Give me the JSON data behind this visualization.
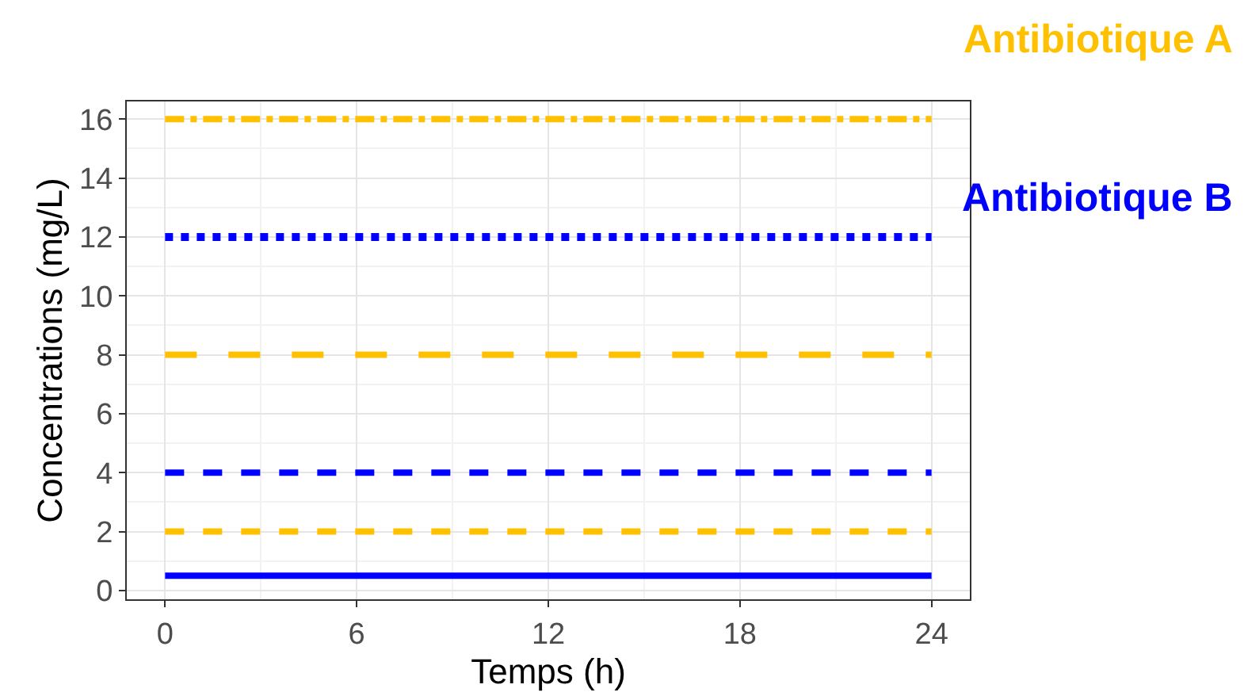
{
  "chart_data": {
    "type": "line",
    "xlabel": "Temps (h)",
    "ylabel": "Concentrations (mg/L)",
    "x": [
      0,
      24
    ],
    "series": [
      {
        "name": "Antibiotique A",
        "color": "#ffc000",
        "values": [
          16,
          16
        ],
        "line_style": "dashdot"
      },
      {
        "color": "#0000ff",
        "values": [
          12,
          12
        ],
        "line_style": "dotted"
      },
      {
        "color": "#ffc000",
        "values": [
          8,
          8
        ],
        "line_style": "longdashed"
      },
      {
        "name": "Antibiotique B",
        "color": "#0000ff",
        "values": [
          4,
          4
        ],
        "line_style": "dashed"
      },
      {
        "color": "#ffc000",
        "values": [
          2,
          2
        ],
        "line_style": "dashed"
      },
      {
        "color": "#0000ff",
        "values": [
          0.5,
          0.5
        ],
        "line_style": "solid"
      }
    ],
    "xlim": [
      -1.2,
      25.2
    ],
    "xticks": [
      0,
      6,
      12,
      18,
      24
    ],
    "ylim": [
      -0.3,
      16.6
    ],
    "yticks": [
      0,
      2,
      4,
      6,
      8,
      10,
      12,
      14,
      16
    ],
    "grid": true,
    "marker": "none"
  }
}
